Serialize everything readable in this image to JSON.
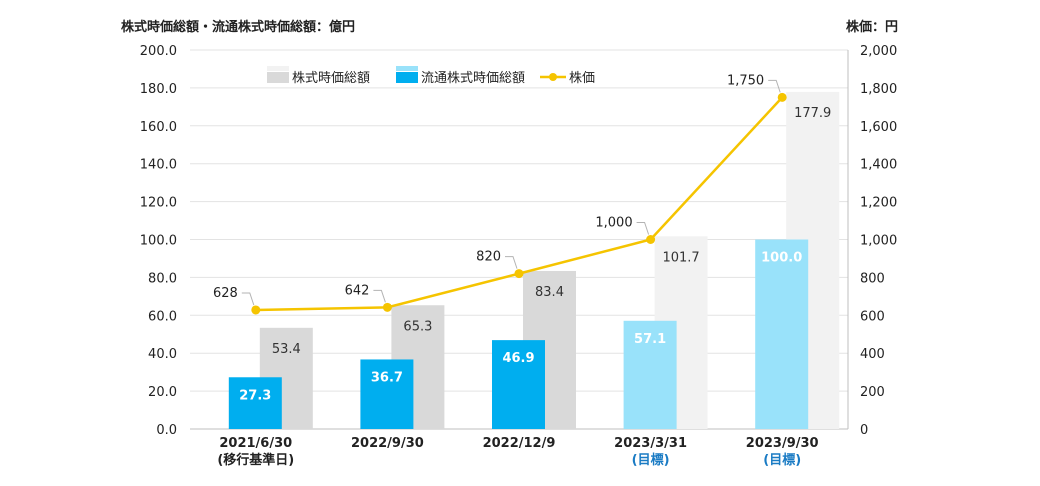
{
  "chart_data": {
    "type": "bar",
    "left_axis_title": "株式時価総額・流通株式時価総額：億円",
    "right_axis_title": "株価：円",
    "categories": [
      {
        "date": "2021/6/30",
        "note": "(移行基準日)",
        "target": false
      },
      {
        "date": "2022/9/30",
        "note": "",
        "target": false
      },
      {
        "date": "2022/12/9",
        "note": "",
        "target": false
      },
      {
        "date": "2023/3/31",
        "note": "(目標)",
        "target": true
      },
      {
        "date": "2023/9/30",
        "note": "(目標)",
        "target": true
      }
    ],
    "series": [
      {
        "name": "株式時価総額",
        "axis": "left",
        "values": [
          53.4,
          65.3,
          83.4,
          101.7,
          177.9
        ],
        "labels": [
          "53.4",
          "65.3",
          "83.4",
          "101.7",
          "177.9"
        ]
      },
      {
        "name": "流通株式時価総額",
        "axis": "left",
        "values": [
          27.3,
          36.7,
          46.9,
          57.1,
          100.0
        ],
        "labels": [
          "27.3",
          "36.7",
          "46.9",
          "57.1",
          "100.0"
        ]
      },
      {
        "name": "株価",
        "axis": "right",
        "type": "line",
        "values": [
          628,
          642,
          820,
          1000,
          1750
        ],
        "labels": [
          "628",
          "642",
          "820",
          "1,000",
          "1,750"
        ]
      }
    ],
    "left_axis": {
      "min": 0,
      "max": 200,
      "ticks": [
        "0.0",
        "20.0",
        "40.0",
        "60.0",
        "80.0",
        "100.0",
        "120.0",
        "140.0",
        "160.0",
        "180.0",
        "200.0"
      ]
    },
    "right_axis": {
      "min": 0,
      "max": 2000,
      "ticks": [
        "0",
        "200",
        "400",
        "600",
        "800",
        "1,000",
        "1,200",
        "1,400",
        "1,600",
        "1,800",
        "2,000"
      ]
    },
    "grid": true,
    "legend_position": "top-left",
    "colors": {
      "market_cap": "#d9d9d9",
      "market_cap_target": "#f2f2f2",
      "float_cap": "#00aeef",
      "float_cap_target": "#99e2fa",
      "price": "#f5c400",
      "target_label": "#1a7bc4"
    }
  }
}
